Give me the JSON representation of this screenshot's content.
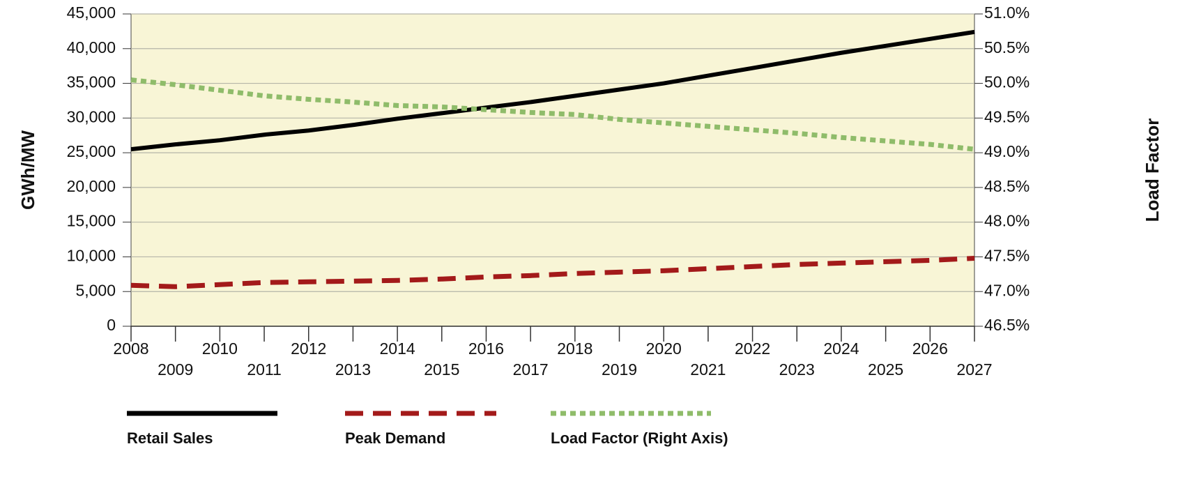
{
  "chart_data": {
    "type": "line",
    "x": [
      2008,
      2009,
      2010,
      2011,
      2012,
      2013,
      2014,
      2015,
      2016,
      2017,
      2018,
      2019,
      2020,
      2021,
      2022,
      2023,
      2024,
      2025,
      2026,
      2027
    ],
    "xlim": [
      2008,
      2027
    ],
    "xticks": [
      2008,
      2009,
      2010,
      2011,
      2012,
      2013,
      2014,
      2015,
      2016,
      2017,
      2018,
      2019,
      2020,
      2021,
      2022,
      2023,
      2024,
      2025,
      2026,
      2027
    ],
    "ylabel": "GWh/MW",
    "y2label": "Load Factor",
    "ylim": [
      0,
      45000
    ],
    "yticks": [
      0,
      {
        "value": 5000,
        "label": "5,000"
      },
      {
        "value": 10000,
        "label": "10,000"
      },
      {
        "value": 15000,
        "label": "15,000"
      },
      {
        "value": 20000,
        "label": "20,000"
      },
      {
        "value": 25000,
        "label": "25,000"
      },
      {
        "value": 30000,
        "label": "30,000"
      },
      {
        "value": 35000,
        "label": "35,000"
      },
      {
        "value": 40000,
        "label": "40,000"
      },
      {
        "value": 45000,
        "label": "45,000"
      }
    ],
    "y2lim": [
      46.5,
      51.0
    ],
    "y2ticks": [
      {
        "value": 46.5,
        "label": "46.5%"
      },
      {
        "value": 47.0,
        "label": "47.0%"
      },
      {
        "value": 47.5,
        "label": "47.5%"
      },
      {
        "value": 48.0,
        "label": "48.0%"
      },
      {
        "value": 48.5,
        "label": "48.5%"
      },
      {
        "value": 49.0,
        "label": "49.0%"
      },
      {
        "value": 49.5,
        "label": "49.5%"
      },
      {
        "value": 50.0,
        "label": "50.0%"
      },
      {
        "value": 50.5,
        "label": "50.5%"
      },
      {
        "value": 51.0,
        "label": "51.0%"
      }
    ],
    "grid": true,
    "legend": "bottom",
    "series": [
      {
        "name": "Retail Sales",
        "color": "#000000",
        "style": "solid",
        "values": [
          25500,
          26200,
          26800,
          27600,
          28200,
          29000,
          29900,
          30700,
          31500,
          32300,
          33200,
          34100,
          35000,
          36100,
          37200,
          38300,
          39400,
          40400,
          41400,
          42400
        ]
      },
      {
        "name": "Peak Demand",
        "color": "#a31a1a",
        "style": "dashed",
        "values": [
          5900,
          5700,
          6000,
          6300,
          6400,
          6500,
          6600,
          6800,
          7100,
          7300,
          7600,
          7800,
          8000,
          8300,
          8600,
          8900,
          9100,
          9300,
          9500,
          9800
        ]
      },
      {
        "name": "Load Factor (Right Axis)",
        "color": "#8fbc6a",
        "style": "dotted",
        "axis": "y2",
        "values": [
          50.05,
          49.98,
          49.9,
          49.82,
          49.77,
          49.73,
          49.68,
          49.66,
          49.62,
          49.58,
          49.55,
          49.48,
          49.43,
          49.38,
          49.33,
          49.28,
          49.22,
          49.17,
          49.12,
          49.05
        ]
      }
    ]
  }
}
